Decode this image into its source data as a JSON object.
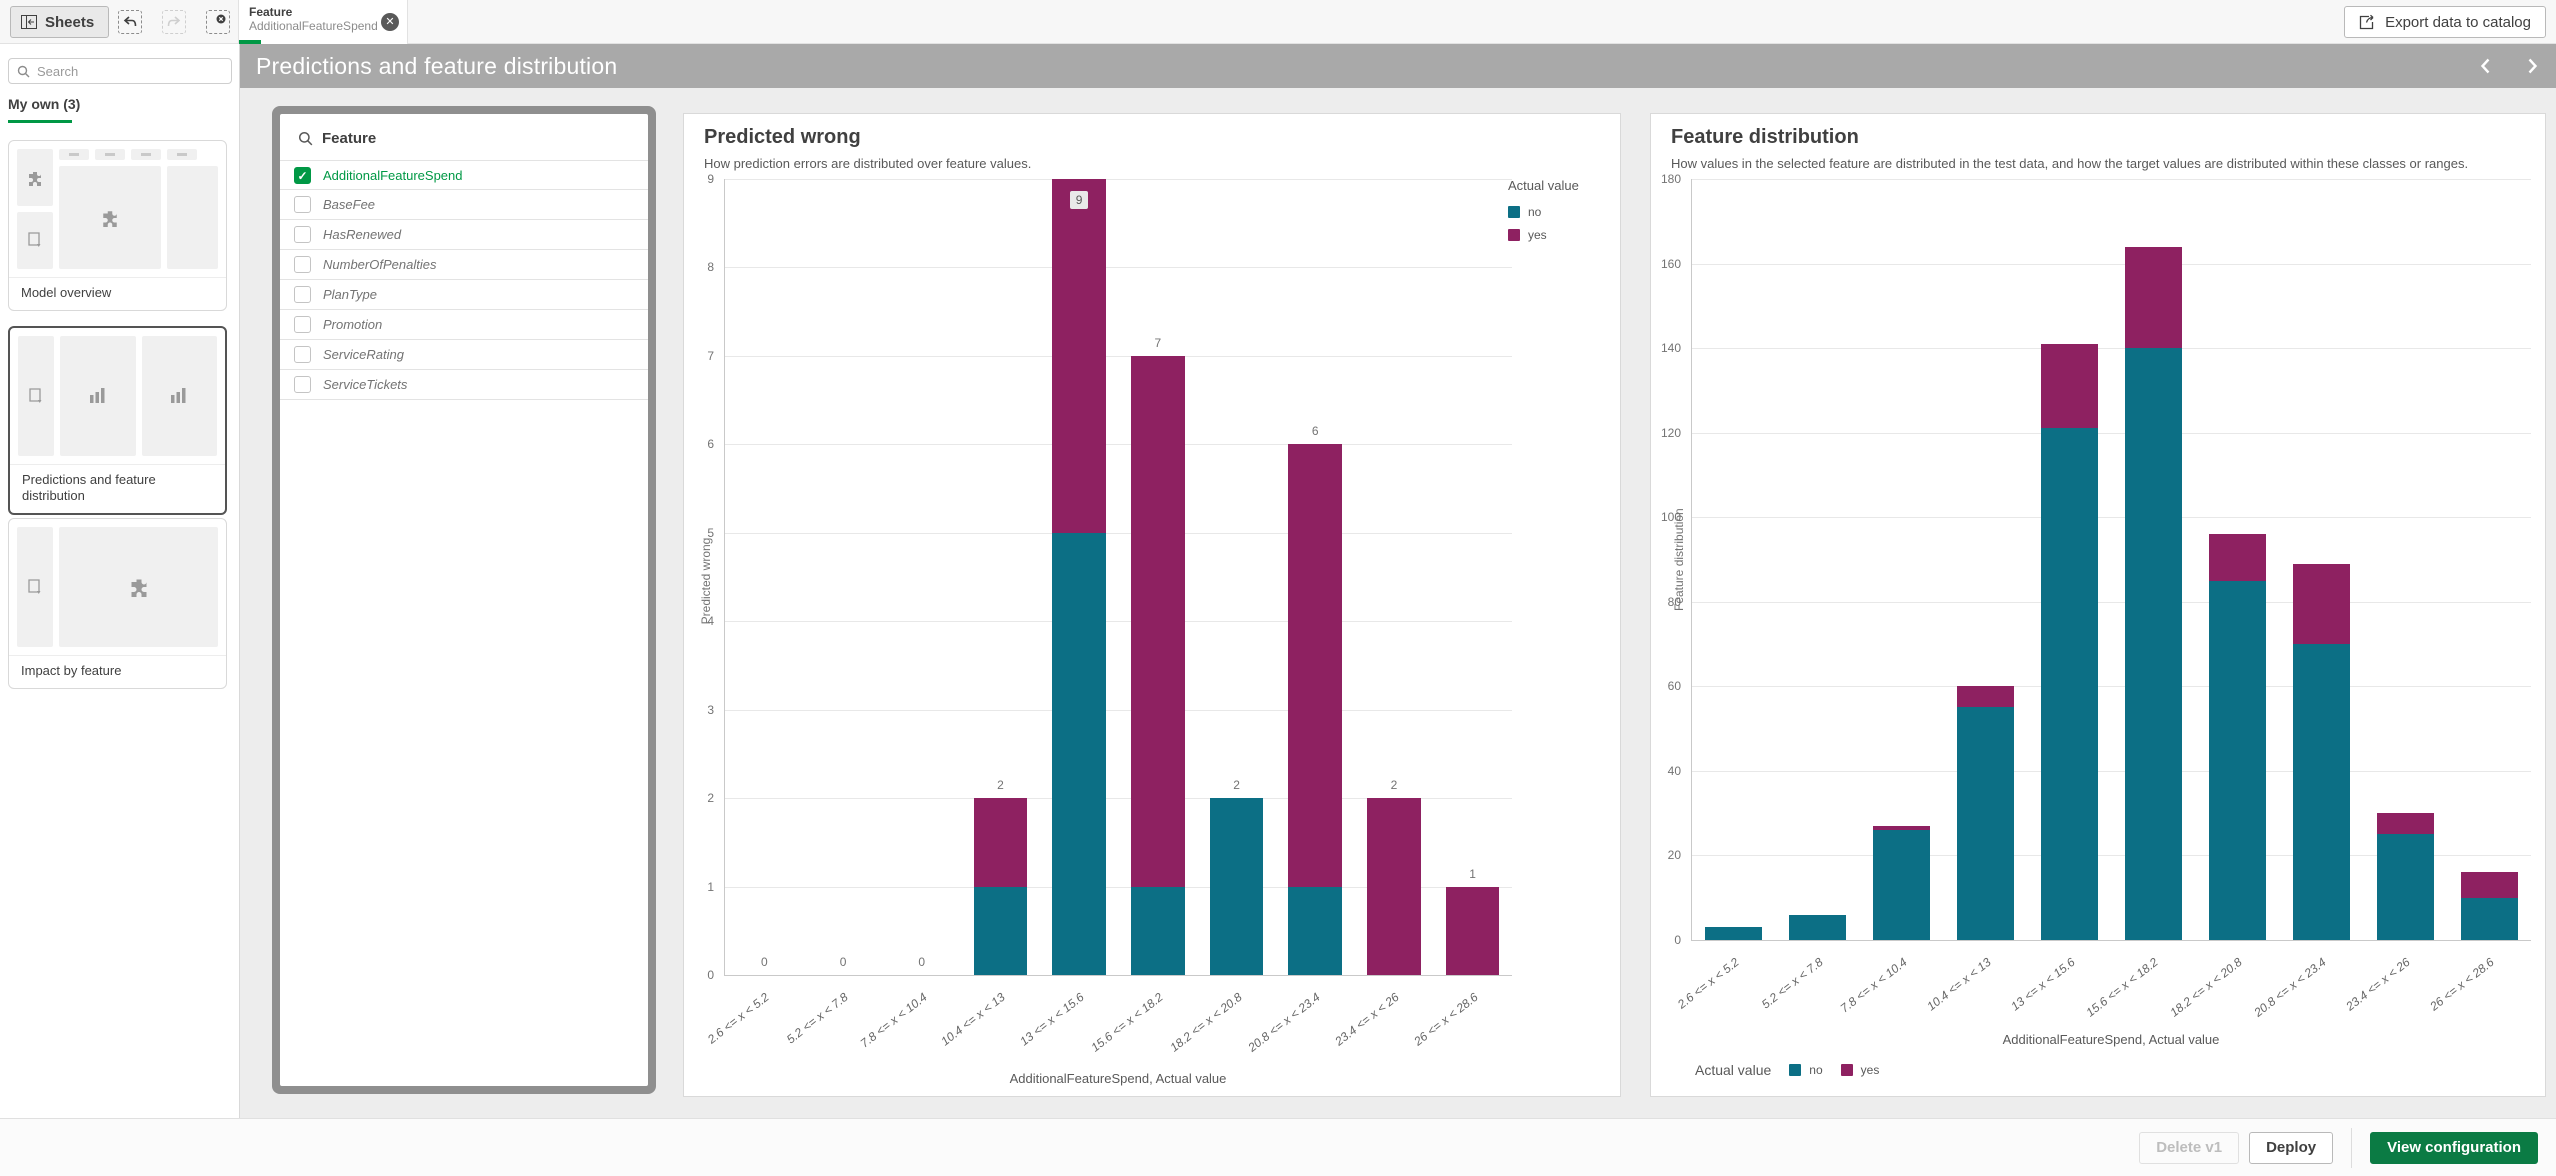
{
  "colors": {
    "no": "#0c6f85",
    "yes": "#8e2161",
    "accent_green": "#009845",
    "button_green": "#0b7b44",
    "titlebar_gray": "#a9a9a9"
  },
  "toolbar": {
    "sheets_label": "Sheets",
    "selection_tab": {
      "field": "Feature",
      "value": "AdditionalFeatureSpend"
    },
    "export_label": "Export data to catalog"
  },
  "title_bar": {
    "title": "Predictions and feature distribution"
  },
  "sidebar": {
    "search_placeholder": "Search",
    "section_label": "My own (3)",
    "sheets": [
      {
        "label": "Model overview"
      },
      {
        "label": "Predictions and feature distribution"
      },
      {
        "label": "Impact by feature"
      }
    ]
  },
  "feature_panel": {
    "title": "Feature",
    "items": [
      {
        "label": "AdditionalFeatureSpend",
        "selected": true
      },
      {
        "label": "BaseFee",
        "selected": false
      },
      {
        "label": "HasRenewed",
        "selected": false
      },
      {
        "label": "NumberOfPenalties",
        "selected": false
      },
      {
        "label": "PlanType",
        "selected": false
      },
      {
        "label": "Promotion",
        "selected": false
      },
      {
        "label": "ServiceRating",
        "selected": false
      },
      {
        "label": "ServiceTickets",
        "selected": false
      }
    ]
  },
  "charts": [
    {
      "type": "bar",
      "stacked": true,
      "title": "Predicted wrong",
      "subtitle": "How prediction errors are distributed over feature values.",
      "ylabel": "Predicted wrong",
      "xlabel": "AdditionalFeatureSpend, Actual value",
      "ylim": [
        0,
        9
      ],
      "ytick_step": 1,
      "grid": true,
      "legend_title": "Actual value",
      "legend_position": "top-right",
      "categories": [
        "2.6 <= x < 5.2",
        "5.2 <= x < 7.8",
        "7.8 <= x < 10.4",
        "10.4 <= x < 13",
        "13 <= x < 15.6",
        "15.6 <= x < 18.2",
        "18.2 <= x < 20.8",
        "20.8 <= x < 23.4",
        "23.4 <= x < 26",
        "26 <= x < 28.6"
      ],
      "series": [
        {
          "name": "no",
          "values": [
            0,
            0,
            0,
            1,
            5,
            1,
            2,
            1,
            0,
            0
          ]
        },
        {
          "name": "yes",
          "values": [
            0,
            0,
            0,
            1,
            4,
            6,
            0,
            5,
            2,
            1
          ]
        }
      ],
      "total_labels": [
        "0",
        "0",
        "0",
        "2",
        "9",
        "7",
        "2",
        "6",
        "2",
        "1"
      ],
      "boxed_label_index": 4
    },
    {
      "type": "bar",
      "stacked": true,
      "title": "Feature distribution",
      "subtitle": "How values in the selected feature are distributed in the test data, and how the target values are distributed within these classes or ranges.",
      "ylabel": "Feature distribution",
      "xlabel": "AdditionalFeatureSpend, Actual value",
      "ylim": [
        0,
        180
      ],
      "ytick_step": 20,
      "grid": true,
      "legend_title": "Actual value",
      "legend_position": "bottom-left",
      "categories": [
        "2.6 <= x < 5.2",
        "5.2 <= x < 7.8",
        "7.8 <= x < 10.4",
        "10.4 <= x < 13",
        "13 <= x < 15.6",
        "15.6 <= x < 18.2",
        "18.2 <= x < 20.8",
        "20.8 <= x < 23.4",
        "23.4 <= x < 26",
        "26 <= x < 28.6"
      ],
      "series": [
        {
          "name": "no",
          "values": [
            3,
            6,
            26,
            55,
            121,
            140,
            85,
            70,
            25,
            10
          ]
        },
        {
          "name": "yes",
          "values": [
            0,
            0,
            1,
            5,
            20,
            24,
            11,
            19,
            5,
            6
          ]
        }
      ],
      "total_labels": null
    }
  ],
  "footer": {
    "delete_label": "Delete v1",
    "deploy_label": "Deploy",
    "view_config_label": "View configuration"
  }
}
